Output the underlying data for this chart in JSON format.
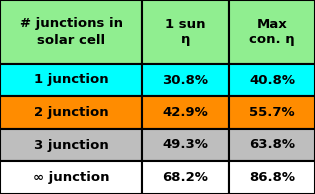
{
  "col_headers": [
    "# junctions in\nsolar cell",
    "1 sun\nη",
    "Max\ncon. η"
  ],
  "rows": [
    {
      "label": "1 junction",
      "val1": "30.8%",
      "val2": "40.8%",
      "color": "#00FFFF"
    },
    {
      "label": "2 junction",
      "val1": "42.9%",
      "val2": "55.7%",
      "color": "#FF8C00"
    },
    {
      "label": "3 junction",
      "val1": "49.3%",
      "val2": "63.8%",
      "color": "#BEBEBE"
    },
    {
      "label": "∞ junction",
      "val1": "68.2%",
      "val2": "86.8%",
      "color": "#FFFFFF"
    }
  ],
  "header_color": "#90EE90",
  "border_color": "#000000",
  "text_color": "#000000",
  "figsize": [
    3.15,
    1.94
  ],
  "dpi": 100
}
